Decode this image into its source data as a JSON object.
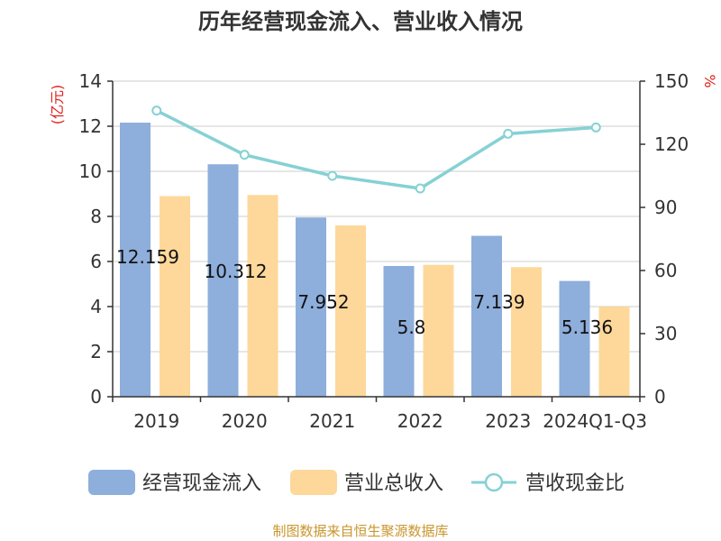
{
  "chart_data": {
    "type": "bar",
    "title": "历年经营现金流入、营业收入情况",
    "categories": [
      "2019",
      "2020",
      "2021",
      "2022",
      "2023",
      "2024Q1-Q3"
    ],
    "series": [
      {
        "name": "经营现金流入",
        "type": "bar",
        "axis": "left",
        "color": "#8eaedb",
        "values": [
          12.159,
          10.312,
          7.952,
          5.8,
          7.139,
          5.136
        ],
        "labels": [
          "12.159",
          "10.312",
          "7.952",
          "5.8",
          "7.139",
          "5.136"
        ]
      },
      {
        "name": "营业总收入",
        "type": "bar",
        "axis": "left",
        "color": "#fdd89a",
        "values": [
          8.9,
          8.95,
          7.6,
          5.85,
          5.75,
          4.0
        ]
      },
      {
        "name": "营收现金比",
        "type": "line",
        "axis": "right",
        "color": "#86d1d4",
        "values": [
          136,
          115,
          105,
          99,
          125,
          128
        ]
      }
    ],
    "y_left": {
      "unit": "(亿元)",
      "ylim": [
        0,
        14
      ],
      "ticks": [
        "0",
        "2",
        "4",
        "6",
        "8",
        "10",
        "12",
        "14"
      ]
    },
    "y_right": {
      "unit": "%",
      "ylim": [
        0,
        150
      ],
      "ticks": [
        "0",
        "30",
        "60",
        "90",
        "120",
        "150"
      ]
    },
    "grid": true,
    "legend_position": "bottom"
  },
  "footer": {
    "source": "制图数据来自恒生聚源数据库"
  }
}
